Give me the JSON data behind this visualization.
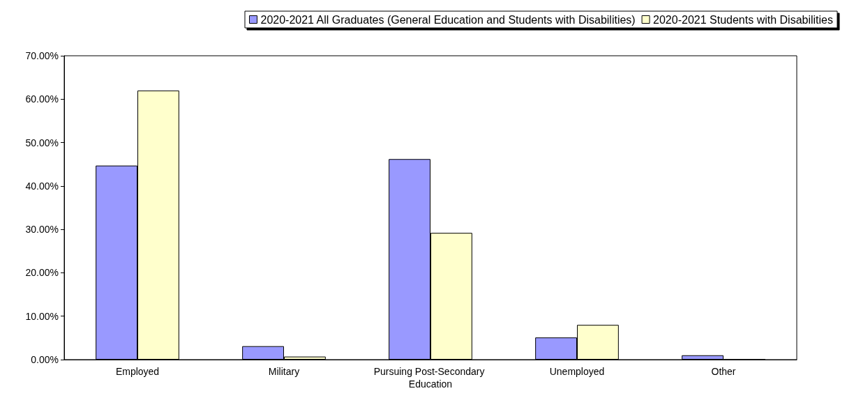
{
  "chart_data": {
    "type": "bar",
    "categories": [
      "Employed",
      "Military",
      "Pursuing Post-Secondary Education",
      "Unemployed",
      "Other"
    ],
    "series": [
      {
        "name": "2020-2021 All Graduates (General Education and Students with Disabilities)",
        "color": "#9999ff",
        "values": [
          44.7,
          3.1,
          46.2,
          5.1,
          1.0
        ]
      },
      {
        "name": "2020-2021 Students with Disabilities",
        "color": "#ffffcc",
        "values": [
          62.0,
          0.7,
          29.2,
          8.0,
          0
        ]
      }
    ],
    "ylim": [
      0,
      70
    ],
    "yticks": [
      {
        "value": 0,
        "label": "0.00%"
      },
      {
        "value": 10,
        "label": "10.00%"
      },
      {
        "value": 20,
        "label": "20.00%"
      },
      {
        "value": 30,
        "label": "30.00%"
      },
      {
        "value": 40,
        "label": "40.00%"
      },
      {
        "value": 50,
        "label": "50.00%"
      },
      {
        "value": 60,
        "label": "60.00%"
      },
      {
        "value": 70,
        "label": "70.00%"
      }
    ],
    "grid": false,
    "legend": "top right"
  }
}
